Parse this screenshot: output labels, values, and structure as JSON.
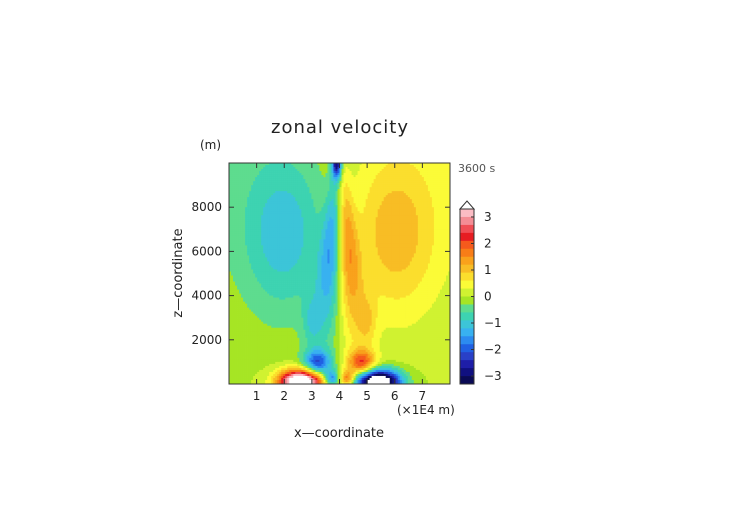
{
  "chart_data": {
    "type": "heatmap",
    "title": "zonal velocity",
    "xlabel": "x—coordinate",
    "ylabel": "z—coordinate",
    "y_unit": "(m)",
    "x_unit": "(×1E4 m)",
    "time_label": "3600 s",
    "xlim": [
      0,
      8
    ],
    "ylim": [
      0,
      10000
    ],
    "x_ticks": [
      "1",
      "2",
      "3",
      "4",
      "5",
      "6",
      "7"
    ],
    "y_ticks": [
      "2000",
      "4000",
      "6000",
      "8000"
    ],
    "colorbar": {
      "ticks": [
        "3",
        "2",
        "1",
        "0",
        "−1",
        "−2",
        "−3"
      ],
      "levels": [
        -3.6,
        -3.3,
        -3,
        -2.7,
        -2.4,
        -2.1,
        -1.8,
        -1.5,
        -1.2,
        -0.9,
        -0.6,
        -0.3,
        0,
        0.3,
        0.6,
        0.9,
        1.2,
        1.5,
        1.8,
        2.1,
        2.4,
        2.7,
        3,
        3.3,
        3.6
      ]
    },
    "features": [
      {
        "name": "positive surface max",
        "x": 2.6,
        "z": 150,
        "value": 3.6
      },
      {
        "name": "negative surface min",
        "x": 5.4,
        "z": 150,
        "value": -3.6
      },
      {
        "name": "negative upper lobe",
        "x": 2.2,
        "z": 6500,
        "value": -0.6
      },
      {
        "name": "positive upper lobe",
        "x": 5.8,
        "z": 6500,
        "value": 0.6
      },
      {
        "name": "central jet",
        "x": 3.85,
        "z": 10000,
        "value": -3.0
      }
    ]
  }
}
